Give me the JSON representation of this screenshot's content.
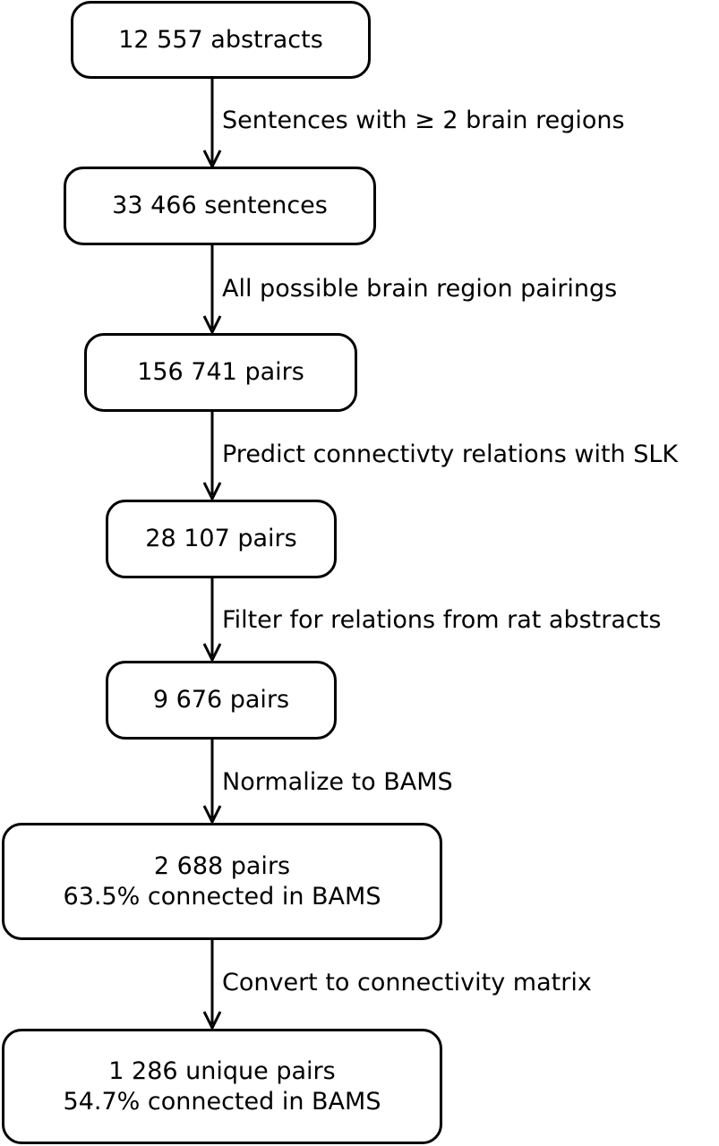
{
  "diagram": {
    "nodes": [
      {
        "id": "abstracts",
        "lines": [
          "12 557 abstracts"
        ]
      },
      {
        "id": "sentences",
        "lines": [
          "33 466 sentences"
        ]
      },
      {
        "id": "pairs-all",
        "lines": [
          "156 741 pairs"
        ]
      },
      {
        "id": "pairs-predicted",
        "lines": [
          "28 107 pairs"
        ]
      },
      {
        "id": "pairs-rat",
        "lines": [
          "9 676 pairs"
        ]
      },
      {
        "id": "pairs-bams",
        "lines": [
          "2 688 pairs",
          "63.5% connected in BAMS"
        ]
      },
      {
        "id": "pairs-unique",
        "lines": [
          "1 286 unique pairs",
          "54.7% connected in BAMS"
        ]
      }
    ],
    "edges": [
      {
        "from": "abstracts",
        "to": "sentences",
        "label": "Sentences with ≥ 2 brain regions"
      },
      {
        "from": "sentences",
        "to": "pairs-all",
        "label": "All possible brain region pairings"
      },
      {
        "from": "pairs-all",
        "to": "pairs-predicted",
        "label": "Predict connectivty relations with SLK"
      },
      {
        "from": "pairs-predicted",
        "to": "pairs-rat",
        "label": "Filter for relations from rat abstracts"
      },
      {
        "from": "pairs-rat",
        "to": "pairs-bams",
        "label": "Normalize to BAMS"
      },
      {
        "from": "pairs-bams",
        "to": "pairs-unique",
        "label": "Convert to connectivity matrix"
      }
    ]
  }
}
